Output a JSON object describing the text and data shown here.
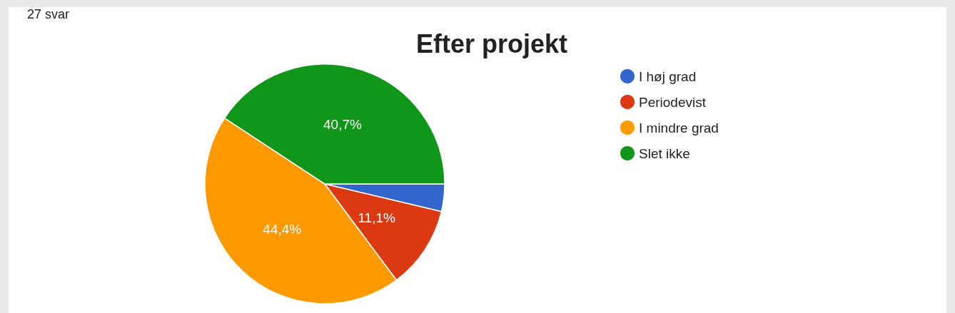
{
  "chart_data": {
    "type": "pie",
    "title": "Efter projekt",
    "categories": [
      "I høj grad",
      "Periodevist",
      "I mindre grad",
      "Slet ikke"
    ],
    "values": [
      3.7,
      11.1,
      44.4,
      40.7
    ],
    "colors": [
      "#3366cc",
      "#dc3912",
      "#ff9900",
      "#109618"
    ],
    "value_labels": [
      null,
      "11,1%",
      "44,4%",
      "40,7%"
    ],
    "annotations": [
      "27 svar"
    ],
    "legend": "right"
  }
}
